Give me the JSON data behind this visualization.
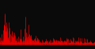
{
  "n_points": 500,
  "background_color": "#0a0a0a",
  "bar_color": "#ee0000",
  "figsize": [
    1.2,
    0.62
  ],
  "dpi": 100,
  "seed": 7
}
